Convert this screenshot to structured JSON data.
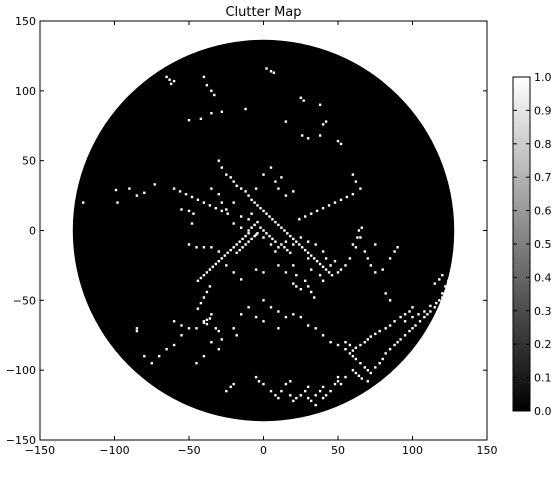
{
  "chart_data": {
    "type": "heatmap",
    "title": "Clutter Map",
    "xlabel": "",
    "ylabel": "",
    "xlim": [
      -150,
      150
    ],
    "ylim": [
      -150,
      150
    ],
    "xticks": [
      -150,
      -100,
      -50,
      0,
      50,
      100,
      150
    ],
    "yticks": [
      -150,
      -100,
      -50,
      0,
      50,
      100,
      150
    ],
    "xtick_labels": [
      "−150",
      "−100",
      "−50",
      "0",
      "50",
      "100",
      "150"
    ],
    "ytick_labels": [
      "−150",
      "−100",
      "−50",
      "0",
      "50",
      "100",
      "150"
    ],
    "grid": false,
    "radar_range": 128,
    "background_value": 0.0,
    "colormap": "gray",
    "colors": {
      "low": "#000000",
      "high": "#ffffff",
      "outside": "#ffffff"
    },
    "colorbar": {
      "ticks": [
        0.0,
        0.1,
        0.2,
        0.3,
        0.4,
        0.5,
        0.6,
        0.7,
        0.8,
        0.9,
        1.0
      ],
      "labels": [
        "0.0",
        "0.1",
        "0.2",
        "0.3",
        "0.4",
        "0.5",
        "0.6",
        "0.7",
        "0.8",
        "0.9",
        "1.0"
      ],
      "range": [
        0.0,
        1.0
      ]
    },
    "clutter_cells": [
      [
        -65,
        110
      ],
      [
        -63,
        108
      ],
      [
        -62,
        105
      ],
      [
        -60,
        107
      ],
      [
        -40,
        110
      ],
      [
        -38,
        104
      ],
      [
        -35,
        100
      ],
      [
        -33,
        97
      ],
      [
        2,
        116
      ],
      [
        5,
        114
      ],
      [
        7,
        113
      ],
      [
        -42,
        80
      ],
      [
        -50,
        79
      ],
      [
        -35,
        84
      ],
      [
        -28,
        85
      ],
      [
        -12,
        87
      ],
      [
        25,
        95
      ],
      [
        27,
        93
      ],
      [
        38,
        90
      ],
      [
        40,
        76
      ],
      [
        42,
        78
      ],
      [
        15,
        78
      ],
      [
        26,
        68
      ],
      [
        30,
        66
      ],
      [
        38,
        68
      ],
      [
        50,
        64
      ],
      [
        52,
        62
      ],
      [
        -121,
        20
      ],
      [
        -99,
        29
      ],
      [
        -90,
        30
      ],
      [
        -80,
        27
      ],
      [
        -73,
        33
      ],
      [
        -98,
        20
      ],
      [
        -85,
        25
      ],
      [
        -55,
        15
      ],
      [
        -50,
        14
      ],
      [
        -47,
        12
      ],
      [
        -35,
        30
      ],
      [
        -30,
        26
      ],
      [
        -28,
        20
      ],
      [
        -25,
        15
      ],
      [
        -20,
        20
      ],
      [
        -15,
        10
      ],
      [
        -10,
        8
      ],
      [
        -8,
        12
      ],
      [
        -5,
        30
      ],
      [
        0,
        40
      ],
      [
        5,
        45
      ],
      [
        8,
        35
      ],
      [
        10,
        30
      ],
      [
        12,
        38
      ],
      [
        15,
        25
      ],
      [
        20,
        28
      ],
      [
        -48,
        5
      ],
      [
        -50,
        -10
      ],
      [
        -45,
        -12
      ],
      [
        -40,
        -12
      ],
      [
        -35,
        -12
      ],
      [
        -30,
        -15
      ],
      [
        -20,
        5
      ],
      [
        -15,
        2
      ],
      [
        -10,
        0
      ],
      [
        -5,
        -3
      ],
      [
        0,
        -5
      ],
      [
        5,
        -10
      ],
      [
        8,
        -15
      ],
      [
        10,
        -12
      ],
      [
        15,
        -8
      ],
      [
        20,
        -10
      ],
      [
        25,
        -5
      ],
      [
        30,
        -8
      ],
      [
        35,
        -10
      ],
      [
        40,
        -15
      ],
      [
        42,
        -20
      ],
      [
        45,
        -25
      ],
      [
        48,
        -22
      ],
      [
        50,
        -30
      ],
      [
        52,
        -28
      ],
      [
        55,
        -25
      ],
      [
        58,
        -20
      ],
      [
        30,
        -20
      ],
      [
        32,
        -28
      ],
      [
        38,
        -32
      ],
      [
        40,
        -36
      ],
      [
        20,
        -25
      ],
      [
        22,
        -32
      ],
      [
        15,
        -30
      ],
      [
        10,
        -25
      ],
      [
        0,
        -30
      ],
      [
        -5,
        -28
      ],
      [
        -15,
        -35
      ],
      [
        -20,
        -30
      ],
      [
        -25,
        -25
      ],
      [
        60,
        -10
      ],
      [
        62,
        -12
      ],
      [
        65,
        -5
      ],
      [
        64,
        0
      ],
      [
        66,
        2
      ],
      [
        63,
        -5
      ],
      [
        68,
        -15
      ],
      [
        70,
        -20
      ],
      [
        72,
        -25
      ],
      [
        75,
        -30
      ],
      [
        80,
        -28
      ],
      [
        85,
        -20
      ],
      [
        88,
        -15
      ],
      [
        90,
        -12
      ],
      [
        75,
        -10
      ],
      [
        82,
        -45
      ],
      [
        85,
        -50
      ],
      [
        20,
        -38
      ],
      [
        22,
        -40
      ],
      [
        25,
        -42
      ],
      [
        -35,
        -60
      ],
      [
        -38,
        -64
      ],
      [
        -40,
        -66
      ],
      [
        -32,
        -70
      ],
      [
        -30,
        -72
      ],
      [
        -28,
        -78
      ],
      [
        -20,
        -70
      ],
      [
        -18,
        -75
      ],
      [
        -55,
        -75
      ],
      [
        -60,
        -82
      ],
      [
        -65,
        -85
      ],
      [
        -70,
        -90
      ],
      [
        -80,
        -90
      ],
      [
        -75,
        -95
      ],
      [
        -85,
        -70
      ],
      [
        -85,
        -72
      ],
      [
        -40,
        -65
      ],
      [
        -38,
        -67
      ],
      [
        -36,
        -63
      ],
      [
        20,
        -60
      ],
      [
        25,
        -62
      ],
      [
        30,
        -68
      ],
      [
        35,
        -70
      ],
      [
        40,
        -75
      ],
      [
        45,
        -80
      ],
      [
        50,
        -82
      ],
      [
        55,
        -85
      ],
      [
        58,
        -88
      ],
      [
        60,
        -90
      ],
      [
        62,
        -92
      ],
      [
        65,
        -95
      ],
      [
        68,
        -98
      ],
      [
        70,
        -100
      ],
      [
        72,
        -102
      ],
      [
        75,
        -98
      ],
      [
        78,
        -95
      ],
      [
        80,
        -92
      ],
      [
        82,
        -88
      ],
      [
        85,
        -85
      ],
      [
        88,
        -82
      ],
      [
        90,
        -80
      ],
      [
        92,
        -78
      ],
      [
        95,
        -75
      ],
      [
        98,
        -72
      ],
      [
        100,
        -70
      ],
      [
        102,
        -68
      ],
      [
        105,
        -65
      ],
      [
        108,
        -62
      ],
      [
        110,
        -60
      ],
      [
        112,
        -58
      ],
      [
        115,
        -55
      ],
      [
        118,
        -50
      ],
      [
        120,
        -45
      ],
      [
        122,
        -40
      ],
      [
        118,
        -35
      ],
      [
        115,
        -38
      ],
      [
        60,
        -100
      ],
      [
        62,
        -102
      ],
      [
        64,
        -104
      ],
      [
        66,
        -106
      ],
      [
        70,
        -108
      ],
      [
        55,
        -105
      ],
      [
        50,
        -108
      ],
      [
        52,
        -110
      ],
      [
        40,
        -112
      ],
      [
        38,
        -115
      ],
      [
        35,
        -118
      ],
      [
        30,
        -112
      ],
      [
        28,
        -115
      ],
      [
        25,
        -118
      ],
      [
        22,
        -120
      ],
      [
        20,
        -122
      ],
      [
        18,
        -118
      ],
      [
        -5,
        -105
      ],
      [
        -3,
        -108
      ],
      [
        0,
        -110
      ],
      [
        -20,
        -110
      ],
      [
        -25,
        -115
      ],
      [
        -22,
        -112
      ],
      [
        5,
        -115
      ],
      [
        8,
        -118
      ],
      [
        10,
        -120
      ],
      [
        12,
        -115
      ],
      [
        15,
        -110
      ],
      [
        18,
        -108
      ],
      [
        30,
        -120
      ],
      [
        32,
        -122
      ],
      [
        35,
        -125
      ],
      [
        40,
        -120
      ],
      [
        42,
        -118
      ],
      [
        45,
        -115
      ],
      [
        48,
        -110
      ],
      [
        50,
        -105
      ],
      [
        95,
        -65
      ],
      [
        100,
        -62
      ],
      [
        104,
        -60
      ],
      [
        108,
        -58
      ],
      [
        112,
        -54
      ],
      [
        116,
        -52
      ],
      [
        120,
        -48
      ],
      [
        124,
        -44
      ],
      [
        126,
        -40
      ],
      [
        124,
        -36
      ],
      [
        120,
        -32
      ],
      [
        100,
        -55
      ],
      [
        98,
        -58
      ],
      [
        95,
        -60
      ],
      [
        92,
        -62
      ],
      [
        88,
        -65
      ],
      [
        85,
        -68
      ],
      [
        82,
        -70
      ],
      [
        78,
        -72
      ],
      [
        75,
        -74
      ],
      [
        72,
        -76
      ],
      [
        70,
        -78
      ],
      [
        68,
        -80
      ],
      [
        65,
        -82
      ],
      [
        62,
        -84
      ],
      [
        60,
        -86
      ],
      [
        58,
        -82
      ],
      [
        55,
        -80
      ],
      [
        0,
        -50
      ],
      [
        5,
        -55
      ],
      [
        10,
        -58
      ],
      [
        15,
        -62
      ],
      [
        -10,
        -55
      ],
      [
        -15,
        -60
      ],
      [
        -5,
        -62
      ],
      [
        0,
        -65
      ],
      [
        10,
        -70
      ],
      [
        -45,
        -70
      ],
      [
        -50,
        -70
      ],
      [
        -55,
        -68
      ],
      [
        -60,
        -65
      ],
      [
        -35,
        -80
      ],
      [
        -30,
        -85
      ],
      [
        -40,
        -90
      ],
      [
        -45,
        -95
      ],
      [
        60,
        40
      ],
      [
        62,
        35
      ],
      [
        65,
        30
      ],
      [
        -30,
        50
      ],
      [
        -28,
        45
      ],
      [
        -25,
        40
      ],
      [
        -22,
        38
      ],
      [
        -20,
        35
      ],
      [
        -18,
        32
      ],
      [
        -15,
        30
      ],
      [
        -12,
        28
      ],
      [
        -10,
        25
      ],
      [
        -8,
        22
      ],
      [
        -6,
        20
      ],
      [
        -4,
        18
      ],
      [
        -2,
        16
      ],
      [
        0,
        14
      ],
      [
        2,
        12
      ],
      [
        4,
        10
      ],
      [
        6,
        8
      ],
      [
        8,
        6
      ],
      [
        10,
        4
      ],
      [
        12,
        2
      ],
      [
        14,
        0
      ],
      [
        16,
        -2
      ],
      [
        18,
        -4
      ],
      [
        20,
        -6
      ],
      [
        22,
        -8
      ],
      [
        24,
        -10
      ],
      [
        26,
        -12
      ],
      [
        28,
        -14
      ],
      [
        30,
        -16
      ],
      [
        32,
        -18
      ],
      [
        34,
        -20
      ],
      [
        36,
        -22
      ],
      [
        38,
        -24
      ],
      [
        40,
        -26
      ],
      [
        42,
        -28
      ],
      [
        44,
        -30
      ],
      [
        46,
        -32
      ],
      [
        -4,
        6
      ],
      [
        -6,
        4
      ],
      [
        -8,
        2
      ],
      [
        -10,
        -2
      ],
      [
        -12,
        -4
      ],
      [
        -14,
        -6
      ],
      [
        -16,
        -8
      ],
      [
        -18,
        -10
      ],
      [
        -20,
        -12
      ],
      [
        -22,
        -14
      ],
      [
        -24,
        -16
      ],
      [
        -26,
        -18
      ],
      [
        -28,
        -20
      ],
      [
        -30,
        -22
      ],
      [
        -32,
        -24
      ],
      [
        -34,
        -26
      ],
      [
        -36,
        -28
      ],
      [
        -38,
        -30
      ],
      [
        -40,
        -32
      ],
      [
        -42,
        -34
      ],
      [
        -44,
        -36
      ],
      [
        0,
        0
      ],
      [
        2,
        -2
      ],
      [
        4,
        -4
      ],
      [
        6,
        -6
      ],
      [
        8,
        -8
      ],
      [
        12,
        -10
      ],
      [
        14,
        -12
      ],
      [
        16,
        -14
      ],
      [
        18,
        -16
      ],
      [
        -2,
        2
      ],
      [
        -4,
        -2
      ],
      [
        -6,
        -4
      ],
      [
        -8,
        -6
      ],
      [
        -10,
        -8
      ],
      [
        -12,
        -10
      ],
      [
        -14,
        -12
      ],
      [
        -16,
        -14
      ],
      [
        -18,
        -16
      ],
      [
        24,
        8
      ],
      [
        28,
        10
      ],
      [
        32,
        12
      ],
      [
        36,
        14
      ],
      [
        40,
        16
      ],
      [
        44,
        18
      ],
      [
        48,
        20
      ],
      [
        52,
        22
      ],
      [
        56,
        24
      ],
      [
        60,
        26
      ],
      [
        -24,
        12
      ],
      [
        -28,
        14
      ],
      [
        -32,
        16
      ],
      [
        -36,
        18
      ],
      [
        -40,
        20
      ],
      [
        -44,
        22
      ],
      [
        -48,
        24
      ],
      [
        -52,
        26
      ],
      [
        -56,
        28
      ],
      [
        -60,
        30
      ],
      [
        28,
        -36
      ],
      [
        30,
        -40
      ],
      [
        32,
        -44
      ],
      [
        34,
        -48
      ],
      [
        -36,
        -40
      ],
      [
        -38,
        -44
      ],
      [
        -40,
        -48
      ],
      [
        -42,
        -52
      ],
      [
        -44,
        -56
      ]
    ]
  }
}
